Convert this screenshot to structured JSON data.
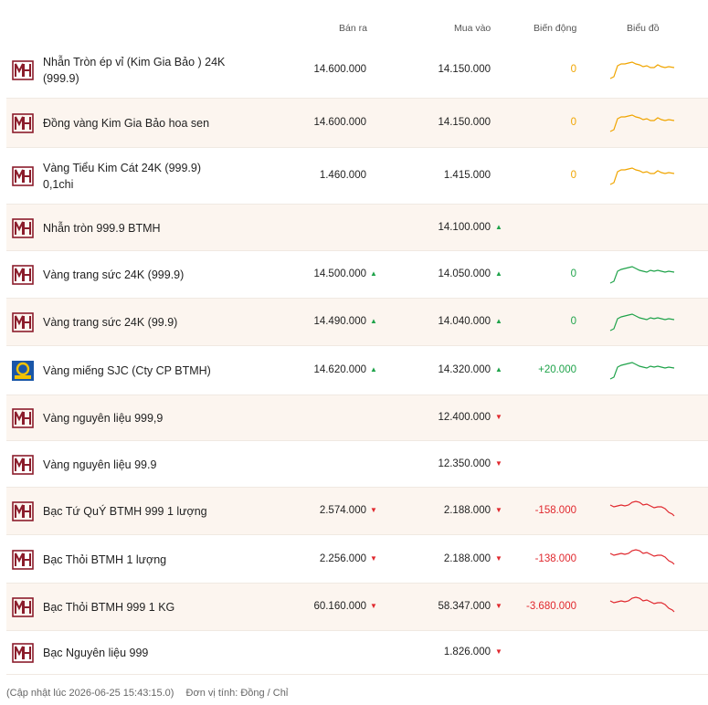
{
  "columns": {
    "sell": "Bán ra",
    "buy": "Mua vào",
    "change": "Biến động",
    "chart": "Biểu đồ"
  },
  "colors": {
    "btmh_logo": "#8b1c2b",
    "sjc_logo_bg": "#1a56a8",
    "sjc_logo_ring": "#f2c200",
    "neutral": "#f0a500",
    "up": "#1fa34a",
    "down": "#e0282e",
    "alt_row": "#fcf5ef"
  },
  "rows": [
    {
      "logo": "btmh-logo",
      "name_lines": [
        "Nhẫn Tròn ép vỉ (Kim Gia Bảo ) 24K",
        "(999.9)"
      ],
      "sell": "14.600.000",
      "sell_trend": "",
      "buy": "14.150.000",
      "buy_trend": "",
      "change": "0",
      "change_trend": "neutral",
      "chart": "neutral"
    },
    {
      "logo": "btmh-logo",
      "name_lines": [
        "Đồng vàng Kim Gia Bảo hoa sen"
      ],
      "sell": "14.600.000",
      "sell_trend": "",
      "buy": "14.150.000",
      "buy_trend": "",
      "change": "0",
      "change_trend": "neutral",
      "chart": "neutral"
    },
    {
      "logo": "btmh-logo",
      "name_lines": [
        "Vàng Tiểu Kim Cát 24K (999.9)",
        "0,1chi"
      ],
      "sell": "1.460.000",
      "sell_trend": "",
      "buy": "1.415.000",
      "buy_trend": "",
      "change": "0",
      "change_trend": "neutral",
      "chart": "neutral"
    },
    {
      "logo": "btmh-logo",
      "name_lines": [
        "Nhẫn tròn 999.9 BTMH"
      ],
      "sell": "",
      "sell_trend": "",
      "buy": "14.100.000",
      "buy_trend": "up",
      "change": "",
      "change_trend": "",
      "chart": ""
    },
    {
      "logo": "btmh-logo",
      "name_lines": [
        "Vàng trang sức 24K (999.9)"
      ],
      "sell": "14.500.000",
      "sell_trend": "up",
      "buy": "14.050.000",
      "buy_trend": "up",
      "change": "0",
      "change_trend": "up",
      "chart": "up"
    },
    {
      "logo": "btmh-logo",
      "name_lines": [
        "Vàng trang sức 24K (99.9)"
      ],
      "sell": "14.490.000",
      "sell_trend": "up",
      "buy": "14.040.000",
      "buy_trend": "up",
      "change": "0",
      "change_trend": "up",
      "chart": "up"
    },
    {
      "logo": "sjc-logo",
      "name_lines": [
        "Vàng miếng SJC (Cty CP BTMH)"
      ],
      "sell": "14.620.000",
      "sell_trend": "up",
      "buy": "14.320.000",
      "buy_trend": "up",
      "change": "+20.000",
      "change_trend": "up",
      "chart": "up"
    },
    {
      "logo": "btmh-logo",
      "name_lines": [
        "Vàng nguyên liệu 999,9"
      ],
      "sell": "",
      "sell_trend": "",
      "buy": "12.400.000",
      "buy_trend": "down",
      "change": "",
      "change_trend": "",
      "chart": ""
    },
    {
      "logo": "btmh-logo",
      "name_lines": [
        "Vàng nguyên liệu 99.9"
      ],
      "sell": "",
      "sell_trend": "",
      "buy": "12.350.000",
      "buy_trend": "down",
      "change": "",
      "change_trend": "",
      "chart": ""
    },
    {
      "logo": "btmh-logo",
      "name_lines": [
        "Bạc Tứ QuÝ BTMH 999 1 lượng"
      ],
      "sell": "2.574.000",
      "sell_trend": "down",
      "buy": "2.188.000",
      "buy_trend": "down",
      "change": "-158.000",
      "change_trend": "down",
      "chart": "down"
    },
    {
      "logo": "btmh-logo",
      "name_lines": [
        "Bạc Thỏi BTMH 1 lượng"
      ],
      "sell": "2.256.000",
      "sell_trend": "down",
      "buy": "2.188.000",
      "buy_trend": "down",
      "change": "-138.000",
      "change_trend": "down",
      "chart": "down"
    },
    {
      "logo": "btmh-logo",
      "name_lines": [
        "Bạc Thỏi BTMH 999 1 KG"
      ],
      "sell": "60.160.000",
      "sell_trend": "down",
      "buy": "58.347.000",
      "buy_trend": "down",
      "change": "-3.680.000",
      "change_trend": "down",
      "chart": "down"
    },
    {
      "logo": "btmh-logo",
      "name_lines": [
        "Bạc Nguyên liệu 999"
      ],
      "sell": "",
      "sell_trend": "",
      "buy": "1.826.000",
      "buy_trend": "down",
      "change": "",
      "change_trend": "",
      "chart": ""
    }
  ],
  "footer": {
    "updated": "(Cập nhật lúc 2026-06-25 15:43:15.0)",
    "unit": "Đơn vị tính: Đồng / Chỉ"
  }
}
